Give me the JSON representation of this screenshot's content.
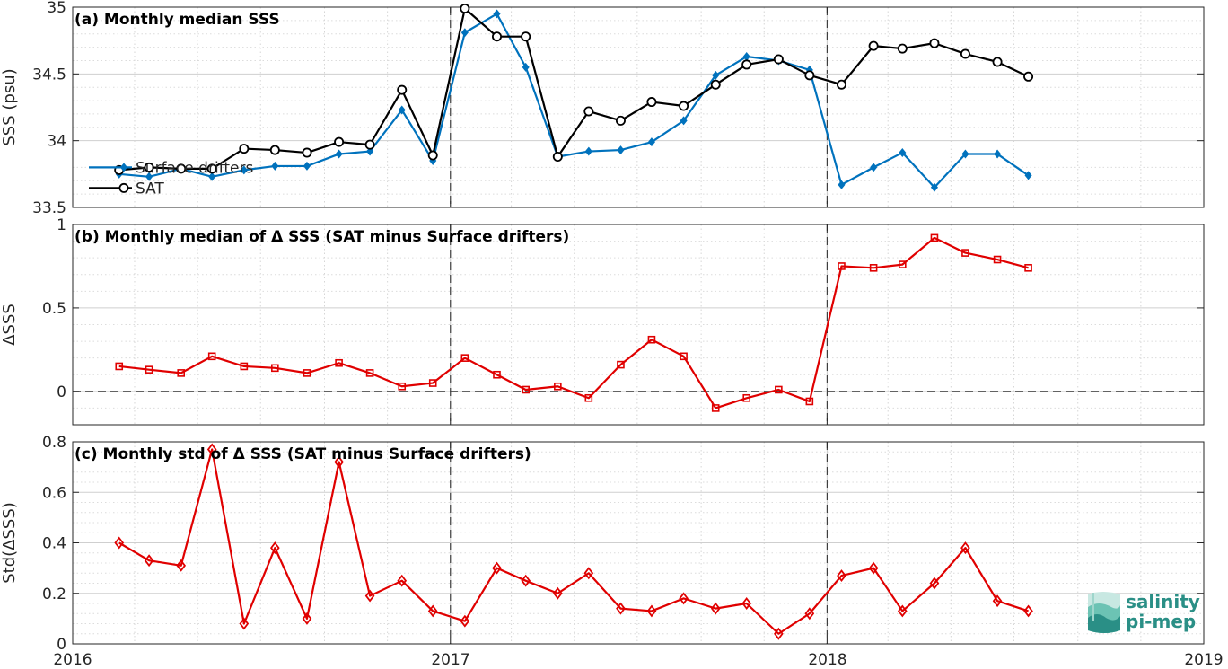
{
  "colors": {
    "drifters": "#0072BD",
    "sat": "#000000",
    "delta": "#E00000",
    "logo": "#2a8f86"
  },
  "logo": {
    "line1": "salinity",
    "line2": "pi-mep",
    "icon": "wave-logo-icon"
  },
  "x_tick_labels": [
    "2016",
    "2017",
    "2018",
    "2019"
  ],
  "chart_data": [
    {
      "type": "line",
      "title": "(a) Monthly median SSS",
      "ylabel": "SSS (psu)",
      "xlim": [
        "2016-01-01",
        "2019-01-01"
      ],
      "ylim": [
        33.5,
        35
      ],
      "yticks": [
        33.5,
        34,
        34.5,
        35
      ],
      "ytick_labels": [
        "33.5",
        "34",
        "34.5",
        "35"
      ],
      "grid": true,
      "legend": "inside-left",
      "x": [
        "2016-02-15",
        "2016-03-15",
        "2016-04-15",
        "2016-05-15",
        "2016-06-15",
        "2016-07-15",
        "2016-08-15",
        "2016-09-15",
        "2016-10-15",
        "2016-11-15",
        "2016-12-15",
        "2017-01-15",
        "2017-02-15",
        "2017-03-15",
        "2017-04-15",
        "2017-05-15",
        "2017-06-15",
        "2017-07-15",
        "2017-08-15",
        "2017-09-15",
        "2017-10-15",
        "2017-11-15",
        "2017-12-15",
        "2018-01-15",
        "2018-02-15",
        "2018-03-15",
        "2018-04-15",
        "2018-05-15",
        "2018-06-15",
        "2018-07-15"
      ],
      "series": [
        {
          "name": "Surface drifters",
          "marker": "diamond-filled",
          "values": [
            33.75,
            33.73,
            33.79,
            33.73,
            33.78,
            33.81,
            33.81,
            33.9,
            33.92,
            34.23,
            33.85,
            34.81,
            34.95,
            34.55,
            33.88,
            33.92,
            33.93,
            33.99,
            34.15,
            34.49,
            34.63,
            34.6,
            34.53,
            33.67,
            33.8,
            33.91,
            33.65,
            33.9,
            33.9,
            33.74
          ]
        },
        {
          "name": "SAT",
          "marker": "circle-open",
          "values": [
            33.78,
            33.8,
            33.79,
            33.79,
            33.94,
            33.93,
            33.91,
            33.99,
            33.97,
            34.38,
            33.89,
            34.99,
            34.78,
            34.78,
            33.88,
            34.22,
            34.15,
            34.29,
            34.26,
            34.42,
            34.57,
            34.61,
            34.49,
            34.42,
            34.71,
            34.69,
            34.73,
            34.65,
            34.59,
            34.48
          ]
        }
      ],
      "legend_start": {
        "x": "2016-01-01",
        "y": 33.8
      }
    },
    {
      "type": "line",
      "title": "(b) Monthly median of Δ SSS (SAT minus Surface drifters)",
      "ylabel": "ΔSSS",
      "xlim": [
        "2016-01-01",
        "2019-01-01"
      ],
      "ylim": [
        -0.2,
        1
      ],
      "yticks": [
        0,
        0.5,
        1
      ],
      "ytick_labels": [
        "0",
        "0.5",
        "1"
      ],
      "grid": true,
      "zero_line": true,
      "x": [
        "2016-02-15",
        "2016-03-15",
        "2016-04-15",
        "2016-05-15",
        "2016-06-15",
        "2016-07-15",
        "2016-08-15",
        "2016-09-15",
        "2016-10-15",
        "2016-11-15",
        "2016-12-15",
        "2017-01-15",
        "2017-02-15",
        "2017-03-15",
        "2017-04-15",
        "2017-05-15",
        "2017-06-15",
        "2017-07-15",
        "2017-08-15",
        "2017-09-15",
        "2017-10-15",
        "2017-11-15",
        "2017-12-15",
        "2018-01-15",
        "2018-02-15",
        "2018-03-15",
        "2018-04-15",
        "2018-05-15",
        "2018-06-15",
        "2018-07-15"
      ],
      "series": [
        {
          "marker": "square-open",
          "values": [
            0.15,
            0.13,
            0.11,
            0.21,
            0.15,
            0.14,
            0.11,
            0.17,
            0.11,
            0.03,
            0.05,
            0.2,
            0.1,
            0.01,
            0.03,
            -0.04,
            0.16,
            0.31,
            0.21,
            -0.1,
            -0.04,
            0.01,
            -0.06,
            0.75,
            0.74,
            0.76,
            0.92,
            0.83,
            0.79,
            0.74
          ]
        }
      ]
    },
    {
      "type": "line",
      "title": "(c) Monthly std of Δ SSS (SAT minus Surface drifters)",
      "ylabel": "Std(ΔSSS)",
      "xlim": [
        "2016-01-01",
        "2019-01-01"
      ],
      "ylim": [
        0,
        0.8
      ],
      "yticks": [
        0,
        0.2,
        0.4,
        0.6,
        0.8
      ],
      "ytick_labels": [
        "0",
        "0.2",
        "0.4",
        "0.6",
        "0.8"
      ],
      "grid": true,
      "x": [
        "2016-02-15",
        "2016-03-15",
        "2016-04-15",
        "2016-05-15",
        "2016-06-15",
        "2016-07-15",
        "2016-08-15",
        "2016-09-15",
        "2016-10-15",
        "2016-11-15",
        "2016-12-15",
        "2017-01-15",
        "2017-02-15",
        "2017-03-15",
        "2017-04-15",
        "2017-05-15",
        "2017-06-15",
        "2017-07-15",
        "2017-08-15",
        "2017-09-15",
        "2017-10-15",
        "2017-11-15",
        "2017-12-15",
        "2018-01-15",
        "2018-02-15",
        "2018-03-15",
        "2018-04-15",
        "2018-05-15",
        "2018-06-15",
        "2018-07-15"
      ],
      "series": [
        {
          "marker": "diamond-open",
          "values": [
            0.4,
            0.33,
            0.31,
            0.77,
            0.08,
            0.38,
            0.1,
            0.72,
            0.19,
            0.25,
            0.13,
            0.09,
            0.3,
            0.25,
            0.2,
            0.28,
            0.14,
            0.13,
            0.18,
            0.14,
            0.16,
            0.04,
            0.12,
            0.27,
            0.3,
            0.13,
            0.24,
            0.38,
            0.17,
            0.13
          ]
        }
      ]
    }
  ]
}
